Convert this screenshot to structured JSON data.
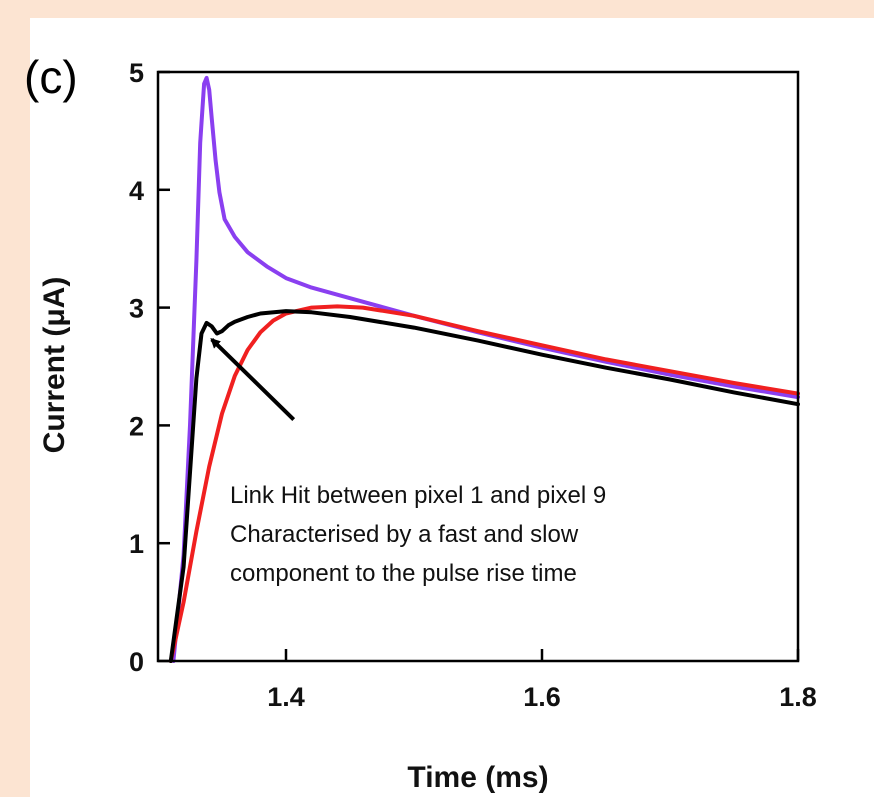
{
  "panel_label": "(c)",
  "colors": {
    "page_background": "#fce4d2",
    "plot_background": "#ffffff"
  },
  "chart_data": {
    "type": "line",
    "title": "",
    "xlabel": "Time (ms)",
    "ylabel": "Current (μA)",
    "xlim": [
      1.3,
      1.8
    ],
    "ylim": [
      0,
      5
    ],
    "x_ticks": [
      {
        "value": 1.4,
        "label": "1.4"
      },
      {
        "value": 1.6,
        "label": "1.6"
      },
      {
        "value": 1.8,
        "label": "1.8"
      }
    ],
    "y_ticks": [
      {
        "value": 0,
        "label": "0"
      },
      {
        "value": 1,
        "label": "1"
      },
      {
        "value": 2,
        "label": "2"
      },
      {
        "value": 3,
        "label": "3"
      },
      {
        "value": 4,
        "label": "4"
      },
      {
        "value": 5,
        "label": "5"
      }
    ],
    "grid": false,
    "legend": "none",
    "series": [
      {
        "color": "#8a3ff0",
        "x": [
          1.312,
          1.32,
          1.325,
          1.33,
          1.333,
          1.336,
          1.338,
          1.34,
          1.342,
          1.345,
          1.348,
          1.352,
          1.36,
          1.37,
          1.385,
          1.4,
          1.42,
          1.45,
          1.5,
          1.55,
          1.6,
          1.65,
          1.7,
          1.75,
          1.8
        ],
        "y": [
          0,
          0.9,
          2.0,
          3.4,
          4.4,
          4.9,
          4.95,
          4.85,
          4.6,
          4.25,
          3.98,
          3.75,
          3.6,
          3.47,
          3.35,
          3.25,
          3.17,
          3.08,
          2.93,
          2.79,
          2.66,
          2.54,
          2.43,
          2.33,
          2.24
        ]
      },
      {
        "color": "#f02020",
        "x": [
          1.31,
          1.32,
          1.33,
          1.34,
          1.35,
          1.36,
          1.37,
          1.38,
          1.39,
          1.4,
          1.42,
          1.44,
          1.46,
          1.5,
          1.55,
          1.6,
          1.65,
          1.7,
          1.75,
          1.8
        ],
        "y": [
          0,
          0.5,
          1.1,
          1.65,
          2.1,
          2.42,
          2.64,
          2.79,
          2.89,
          2.95,
          3.0,
          3.01,
          3.0,
          2.93,
          2.8,
          2.68,
          2.56,
          2.46,
          2.36,
          2.27
        ]
      },
      {
        "color": "#000000",
        "x": [
          1.31,
          1.32,
          1.325,
          1.33,
          1.334,
          1.338,
          1.342,
          1.346,
          1.35,
          1.355,
          1.36,
          1.37,
          1.38,
          1.4,
          1.42,
          1.45,
          1.5,
          1.55,
          1.6,
          1.65,
          1.7,
          1.75,
          1.8
        ],
        "y": [
          0,
          0.8,
          1.6,
          2.4,
          2.78,
          2.87,
          2.84,
          2.78,
          2.8,
          2.85,
          2.88,
          2.92,
          2.95,
          2.97,
          2.96,
          2.92,
          2.83,
          2.72,
          2.6,
          2.49,
          2.39,
          2.28,
          2.18
        ]
      }
    ],
    "annotation": {
      "lines": [
        "Link Hit between pixel 1 and pixel 9",
        "Characterised by a fast and slow",
        "component to the pulse rise time"
      ],
      "arrow_from": [
        1.406,
        2.05
      ],
      "arrow_to": [
        1.342,
        2.73
      ]
    }
  }
}
